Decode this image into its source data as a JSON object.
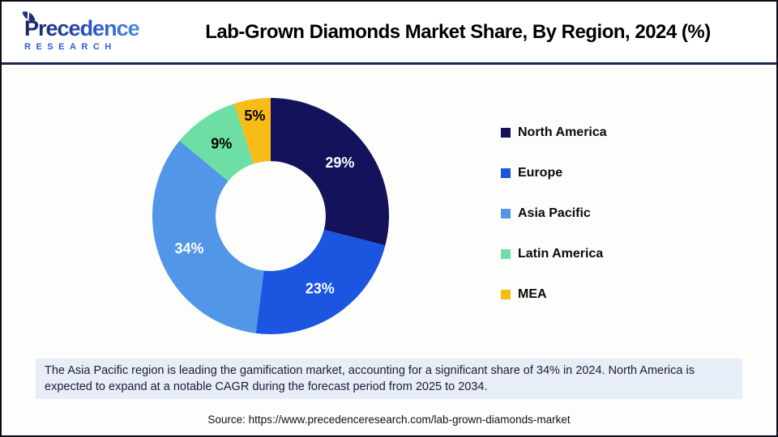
{
  "header": {
    "logo": {
      "brand": "Precedence",
      "sub": "RESEARCH"
    },
    "title": "Lab-Grown Diamonds Market Share, By Region, 2024 (%)"
  },
  "chart_data": {
    "type": "pie",
    "subtype": "donut",
    "title": "Lab-Grown Diamonds Market Share, By Region, 2024 (%)",
    "categories": [
      "North America",
      "Europe",
      "Asia Pacific",
      "Latin America",
      "MEA"
    ],
    "values": [
      29,
      23,
      34,
      9,
      5
    ],
    "unit": "%",
    "colors": [
      "#13125b",
      "#1b55e0",
      "#5297e7",
      "#6edfa4",
      "#f7bc17"
    ],
    "label_text_colors": [
      "#ffffff",
      "#ffffff",
      "#ffffff",
      "#000000",
      "#000000"
    ],
    "start_angle_deg": 0,
    "direction": "clockwise",
    "donut_hole_ratio": 0.465,
    "legend_position": "right"
  },
  "summary": {
    "text": "The Asia Pacific region is leading the gamification market, accounting for a significant share of 34% in 2024. North America is expected to expand at a notable CAGR during the forecast period from 2025 to 2034."
  },
  "source": {
    "text": "Source: https://www.precedenceresearch.com/lab-grown-diamonds-market"
  },
  "colors": {
    "page_border": "#0c0c1c",
    "header_rule": "#1b2558",
    "summary_bg": "#e8eef8",
    "brand_blue": "#2a5bd7"
  }
}
